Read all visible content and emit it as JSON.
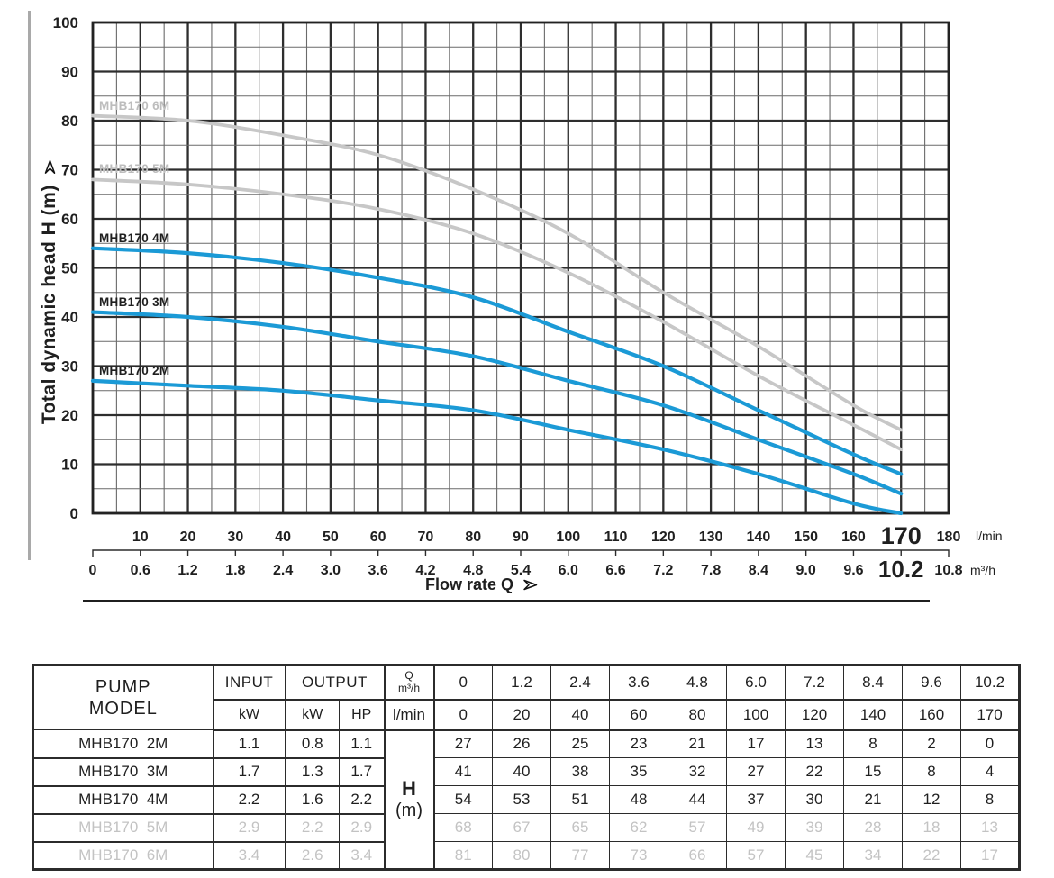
{
  "chart_data": {
    "type": "line",
    "xlabel": "Flow rate Q",
    "ylabel": "Total dynamic head H (m)",
    "x_unit_primary": "l/min",
    "x_unit_secondary": "m³/h",
    "xlim_lmin": [
      0,
      180
    ],
    "ylim": [
      0,
      100
    ],
    "grid_minor_step": 5,
    "grid_major_step": 10,
    "x_lmin": [
      0,
      20,
      40,
      60,
      80,
      100,
      120,
      140,
      160,
      170
    ],
    "series": [
      {
        "name": "MHB170 6M",
        "color_key": "gray",
        "values": [
          81,
          80,
          77,
          73,
          66,
          57,
          45,
          34,
          22,
          17
        ]
      },
      {
        "name": "MHB170 5M",
        "color_key": "gray",
        "values": [
          68,
          67,
          65,
          62,
          57,
          49,
          39,
          28,
          18,
          13
        ]
      },
      {
        "name": "MHB170 4M",
        "color_key": "blue",
        "values": [
          54,
          53,
          51,
          48,
          44,
          37,
          30,
          21,
          12,
          8
        ]
      },
      {
        "name": "MHB170 3M",
        "color_key": "blue",
        "values": [
          41,
          40,
          38,
          35,
          32,
          27,
          22,
          15,
          8,
          4
        ]
      },
      {
        "name": "MHB170 2M",
        "color_key": "blue",
        "values": [
          27,
          26,
          25,
          23,
          21,
          17,
          13,
          8,
          2,
          0
        ]
      }
    ],
    "y_ticks": [
      "0",
      "10",
      "20",
      "30",
      "40",
      "50",
      "60",
      "70",
      "80",
      "90",
      "100"
    ],
    "x_ticks_lmin": [
      "10",
      "20",
      "30",
      "40",
      "50",
      "60",
      "70",
      "80",
      "90",
      "100",
      "110",
      "120",
      "130",
      "140",
      "150",
      "160",
      "170",
      "180"
    ],
    "x_ticks_m3h": [
      "0",
      "0.6",
      "1.2",
      "1.8",
      "2.4",
      "3.0",
      "3.6",
      "4.2",
      "4.8",
      "5.4",
      "6.0",
      "6.6",
      "7.2",
      "7.8",
      "8.4",
      "9.0",
      "9.6",
      "10.2",
      "10.8"
    ],
    "highlight_lmin": "170",
    "highlight_m3h": "10.2",
    "colors": {
      "blue": "#1b9ad6",
      "gray": "#c7c7c7",
      "grid_major": "#2e2e2e",
      "grid_minor": "#6a6a6a",
      "axis_text": "#1f1f1f",
      "dim_text": "#bdbdbd"
    }
  },
  "table": {
    "header": {
      "pump_model_line1": "PUMP",
      "pump_model_line2": "MODEL",
      "input": "INPUT",
      "output": "OUTPUT",
      "input_unit": "kW",
      "output_unit_kw": "kW",
      "output_unit_hp": "HP",
      "q_label": "Q",
      "q_unit_top": "m³/h",
      "q_unit_bottom": "l/min",
      "flow_m3h": [
        "0",
        "1.2",
        "2.4",
        "3.6",
        "4.8",
        "6.0",
        "7.2",
        "8.4",
        "9.6",
        "10.2"
      ],
      "flow_lmin": [
        "0",
        "20",
        "40",
        "60",
        "80",
        "100",
        "120",
        "140",
        "160",
        "170"
      ],
      "h_label": "H",
      "h_unit": "(m)"
    },
    "rows": [
      {
        "model": "MHB170  2M",
        "input_kw": "1.1",
        "output_kw": "0.8",
        "output_hp": "1.1",
        "h_values": [
          "27",
          "26",
          "25",
          "23",
          "21",
          "17",
          "13",
          "8",
          "2",
          "0"
        ],
        "dimmed": false
      },
      {
        "model": "MHB170  3M",
        "input_kw": "1.7",
        "output_kw": "1.3",
        "output_hp": "1.7",
        "h_values": [
          "41",
          "40",
          "38",
          "35",
          "32",
          "27",
          "22",
          "15",
          "8",
          "4"
        ],
        "dimmed": false
      },
      {
        "model": "MHB170  4M",
        "input_kw": "2.2",
        "output_kw": "1.6",
        "output_hp": "2.2",
        "h_values": [
          "54",
          "53",
          "51",
          "48",
          "44",
          "37",
          "30",
          "21",
          "12",
          "8"
        ],
        "dimmed": false
      },
      {
        "model": "MHB170  5M",
        "input_kw": "2.9",
        "output_kw": "2.2",
        "output_hp": "2.9",
        "h_values": [
          "68",
          "67",
          "65",
          "62",
          "57",
          "49",
          "39",
          "28",
          "18",
          "13"
        ],
        "dimmed": true
      },
      {
        "model": "MHB170  6M",
        "input_kw": "3.4",
        "output_kw": "2.6",
        "output_hp": "3.4",
        "h_values": [
          "81",
          "80",
          "77",
          "73",
          "66",
          "57",
          "45",
          "34",
          "22",
          "17"
        ],
        "dimmed": true
      }
    ]
  }
}
